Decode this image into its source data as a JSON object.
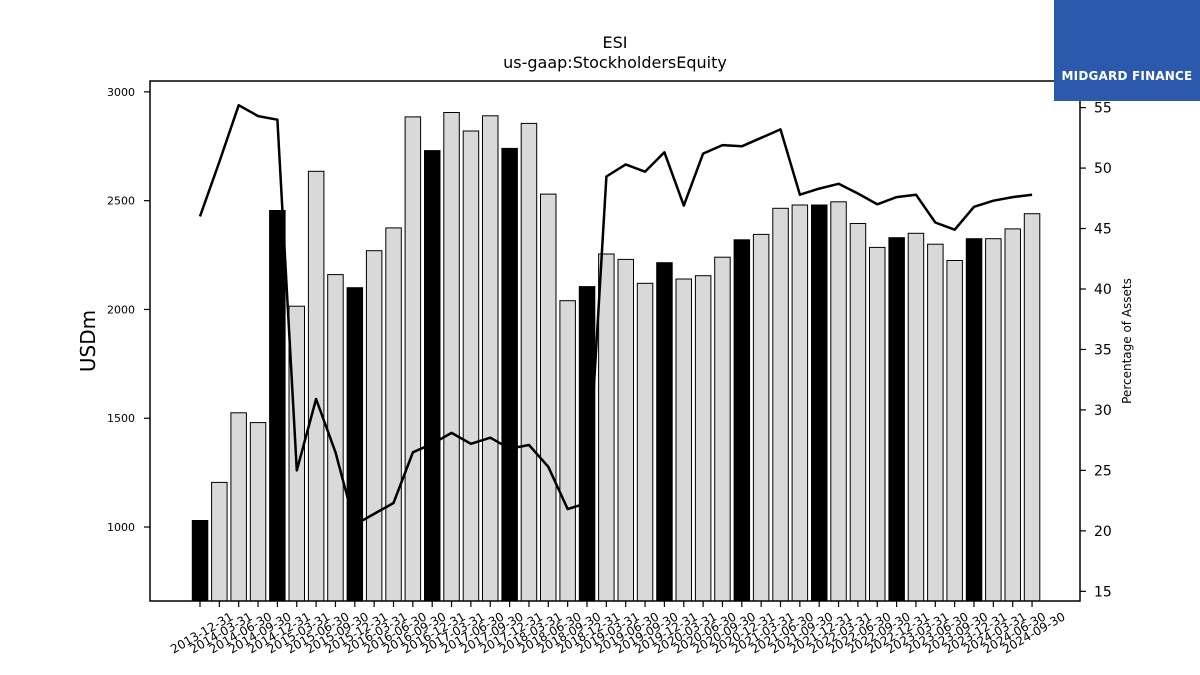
{
  "chart_data": {
    "type": "bar+line",
    "title": "ESI",
    "subtitle": "us-gaap:StockholdersEquity",
    "ylabel": "USDm",
    "y2label": "Percentage of Assets",
    "ylim": [
      660,
      3050
    ],
    "y2lim": [
      14.2,
      57.2
    ],
    "yticks": [
      1000,
      1500,
      2000,
      2500,
      3000
    ],
    "y2ticks": [
      15,
      20,
      25,
      30,
      35,
      40,
      45,
      50,
      55
    ],
    "categories": [
      "2013-12-31",
      "2014-03-31",
      "2014-06-30",
      "2014-09-30",
      "2014-12-31",
      "2015-03-31",
      "2015-06-30",
      "2015-09-30",
      "2015-12-31",
      "2016-03-31",
      "2016-06-30",
      "2016-09-30",
      "2016-12-31",
      "2017-03-31",
      "2017-06-30",
      "2017-09-30",
      "2017-12-31",
      "2018-03-31",
      "2018-06-30",
      "2018-09-30",
      "2018-12-31",
      "2019-03-31",
      "2019-06-30",
      "2019-09-30",
      "2019-12-31",
      "2020-03-31",
      "2020-06-30",
      "2020-09-30",
      "2020-12-31",
      "2021-03-31",
      "2021-06-30",
      "2021-09-30",
      "2021-12-31",
      "2022-03-31",
      "2022-06-30",
      "2022-09-30",
      "2022-12-31",
      "2023-03-31",
      "2023-06-30",
      "2023-09-30",
      "2023-12-31",
      "2024-03-31",
      "2024-06-30",
      "2024-09-30"
    ],
    "series": [
      {
        "kind": "bar",
        "values": [
          1030,
          1205,
          1525,
          1480,
          2455,
          2015,
          2635,
          2160,
          2100,
          2270,
          2375,
          2885,
          2730,
          2905,
          2820,
          2890,
          2740,
          2855,
          2530,
          2040,
          2105,
          2255,
          2230,
          2120,
          2215,
          2140,
          2155,
          2240,
          2320,
          2345,
          2465,
          2480,
          2480,
          2495,
          2395,
          2285,
          2330,
          2350,
          2300,
          2225,
          2325,
          2325,
          2370,
          2440
        ],
        "q4_color": "#000000",
        "other_color": "#d9d9d9"
      },
      {
        "kind": "line",
        "axis": "right",
        "color": "#000000",
        "values": [
          46.0,
          50.5,
          55.2,
          54.3,
          54.0,
          25.0,
          30.9,
          26.5,
          20.5,
          21.4,
          22.3,
          26.5,
          27.2,
          28.1,
          27.2,
          27.7,
          26.8,
          27.1,
          25.3,
          21.8,
          22.3,
          49.3,
          50.3,
          49.7,
          51.3,
          46.9,
          51.2,
          51.9,
          51.8,
          52.5,
          53.2,
          47.8,
          48.3,
          48.7,
          47.9,
          47.0,
          47.6,
          47.8,
          45.5,
          44.9,
          46.8,
          47.3,
          47.6,
          47.8
        ]
      }
    ],
    "grid": false
  },
  "logo": {
    "text": "MIDGARD FINANCE",
    "color": "#2c59ab"
  }
}
